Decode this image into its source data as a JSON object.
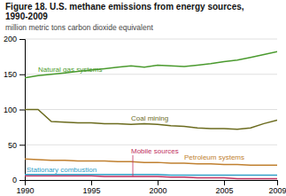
{
  "chart_data": {
    "type": "line",
    "title": "Figure 18. U.S. methane emissions from energy sources, 1990-2009",
    "subtitle": "million metric tons carbon dioxide equivalent",
    "x": [
      1990,
      1991,
      1992,
      1993,
      1994,
      1995,
      1996,
      1997,
      1998,
      1999,
      2000,
      2001,
      2002,
      2003,
      2004,
      2005,
      2006,
      2007,
      2008,
      2009
    ],
    "series": [
      {
        "name": "Natural gas systems",
        "color": "#4a9a2e",
        "values": [
          145,
          148,
          150,
          152,
          154,
          156,
          158,
          160,
          162,
          160,
          163,
          162,
          161,
          163,
          165,
          168,
          170,
          174,
          178,
          182
        ]
      },
      {
        "name": "Coal mining",
        "color": "#6b6b1e",
        "values": [
          100,
          100,
          83,
          82,
          81,
          81,
          80,
          80,
          79,
          80,
          79,
          77,
          76,
          74,
          73,
          73,
          72,
          74,
          80,
          85
        ]
      },
      {
        "name": "Petroleum systems",
        "color": "#c08030",
        "values": [
          30,
          29,
          28,
          28,
          27,
          27,
          27,
          26,
          26,
          25,
          25,
          24,
          24,
          23,
          23,
          22,
          22,
          21,
          21,
          21
        ]
      },
      {
        "name": "Mobile sources",
        "color": "#c03060",
        "values": [
          6,
          6,
          6,
          6,
          6,
          6,
          5,
          5,
          5,
          5,
          5,
          4,
          4,
          3,
          3,
          3,
          2,
          2,
          2,
          2
        ]
      },
      {
        "name": "Stationary combustion",
        "color": "#30a0c8",
        "values": [
          8,
          8,
          8,
          8,
          8,
          8,
          8,
          8,
          8,
          8,
          8,
          7,
          7,
          7,
          7,
          7,
          7,
          7,
          7,
          7
        ]
      }
    ],
    "xlim": [
      1990,
      2009
    ],
    "xticks": [
      1990,
      1995,
      2000,
      2005,
      2009
    ],
    "ylim": [
      0,
      200
    ],
    "yticks": [
      0,
      50,
      100,
      150,
      200
    ],
    "grid": true
  }
}
